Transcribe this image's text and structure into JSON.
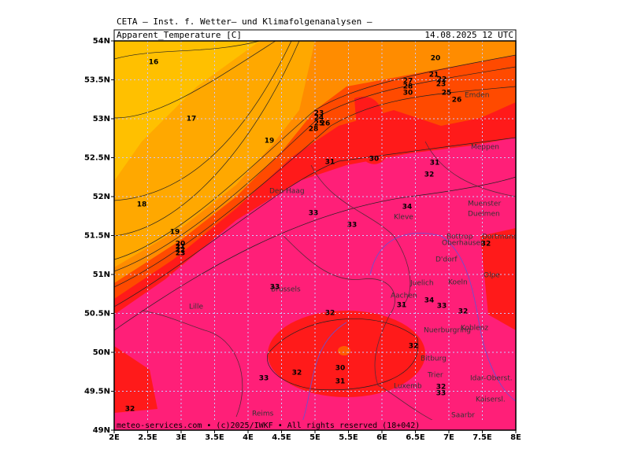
{
  "header": {
    "title": "CETA — Inst. f. Wetter— und Klimafolgenanalysen —",
    "field": "Apparent_Temperature [C]",
    "valid_time": "14.08.2025 12 UTC"
  },
  "map": {
    "lat_labels": [
      "54N",
      "53.5N",
      "53N",
      "52.5N",
      "52N",
      "51.5N",
      "51N",
      "50.5N",
      "50N",
      "49.5N",
      "49N"
    ],
    "lon_labels": [
      "2E",
      "2.5E",
      "3E",
      "3.5E",
      "4E",
      "4.5E",
      "5E",
      "5.5E",
      "6E",
      "6.5E",
      "7E",
      "7.5E",
      "8E"
    ],
    "cities": [
      "Emden",
      "Meppen",
      "Den Haag",
      "Muenster",
      "Duelmen",
      "Kleve",
      "Bottrop",
      "Dortmund",
      "Oberhausen",
      "D'dorf",
      "Koeln",
      "Olpe",
      "Brussels",
      "Juelich",
      "Aachen",
      "Lille",
      "Nuerburgring",
      "Koblenz",
      "Bitburg",
      "Trier",
      "Idar-Oberst.",
      "Luxemb",
      "Kaisersl.",
      "Reims",
      "Saarbr"
    ],
    "contour_labels": [
      16,
      17,
      18,
      19,
      19,
      20,
      21,
      22,
      23,
      25,
      26,
      27,
      28,
      30,
      23,
      24,
      25,
      26,
      28,
      20,
      21,
      22,
      23,
      31,
      30,
      31,
      32,
      34,
      33,
      33,
      32,
      33,
      32,
      31,
      34,
      33,
      32,
      32,
      30,
      31,
      32,
      33,
      32,
      32,
      33
    ]
  },
  "footer": "meteo-services.com • (c)2025/IWKF • All rights reserved (18+042)"
}
